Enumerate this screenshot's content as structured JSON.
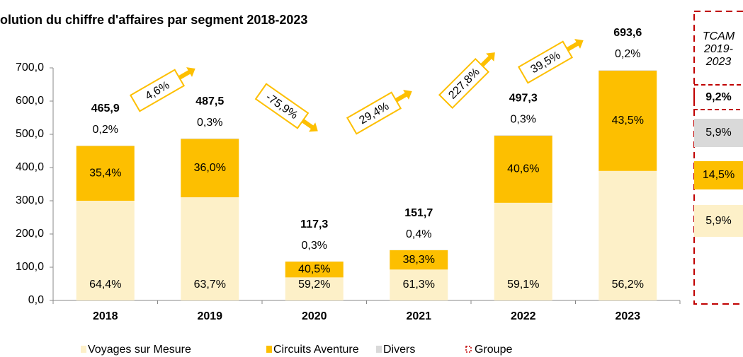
{
  "chart_data": {
    "type": "bar",
    "stacked": true,
    "title": "olution du chiffre d'affaires par segment 2018-2023",
    "categories": [
      "2018",
      "2019",
      "2020",
      "2021",
      "2022",
      "2023"
    ],
    "totals": {
      "values": [
        465.9,
        487.5,
        117.3,
        151.7,
        497.3,
        693.6
      ],
      "value_labels": [
        "465,9",
        "487,5",
        "117,3",
        "151,7",
        "497,3",
        "693,6"
      ]
    },
    "series": [
      {
        "name": "Voyages sur Mesure",
        "color": "#fdf0c8",
        "values": [
          64.4,
          63.7,
          59.2,
          61.3,
          59.1,
          56.2
        ],
        "value_labels": [
          "64,4%",
          "63,7%",
          "59,2%",
          "61,3%",
          "59,1%",
          "56,2%"
        ]
      },
      {
        "name": "Circuits Aventure",
        "color": "#fdbf00",
        "values": [
          35.4,
          36.0,
          40.5,
          38.3,
          40.6,
          43.5
        ],
        "value_labels": [
          "35,4%",
          "36,0%",
          "40,5%",
          "38,3%",
          "40,6%",
          "43,5%"
        ]
      },
      {
        "name": "Divers",
        "color": "#d9d9d9",
        "values": [
          0.2,
          0.3,
          0.3,
          0.4,
          0.3,
          0.2
        ],
        "value_labels": [
          "0,2%",
          "0,3%",
          "0,3%",
          "0,4%",
          "0,3%",
          "0,2%"
        ]
      }
    ],
    "growth": [
      {
        "value": 4.6,
        "label": "4,6%"
      },
      {
        "value": -75.9,
        "label": "-75,9%"
      },
      {
        "value": 29.4,
        "label": "29,4%"
      },
      {
        "value": 227.8,
        "label": "227,8%"
      },
      {
        "value": 39.5,
        "label": "39,5%"
      }
    ],
    "cagr": {
      "title": "TCAM 2019-2023",
      "group": {
        "value": 9.2,
        "label": "9,2%"
      },
      "values": [
        5.9,
        14.5,
        5.9
      ],
      "value_labels": [
        "5,9%",
        "14,5%",
        "5,9%"
      ]
    },
    "group_legend": {
      "name": "Groupe",
      "color": "#c00000"
    },
    "ylim": [
      0,
      700
    ],
    "yticks": [
      {
        "value": 0,
        "label": "0,0"
      },
      {
        "value": 100,
        "label": "100,0"
      },
      {
        "value": 200,
        "label": "200,0"
      },
      {
        "value": 300,
        "label": "300,0"
      },
      {
        "value": 400,
        "label": "400,0"
      },
      {
        "value": 500,
        "label": "500,0"
      },
      {
        "value": 600,
        "label": "600,0"
      },
      {
        "value": 700,
        "label": "700,0"
      }
    ]
  }
}
